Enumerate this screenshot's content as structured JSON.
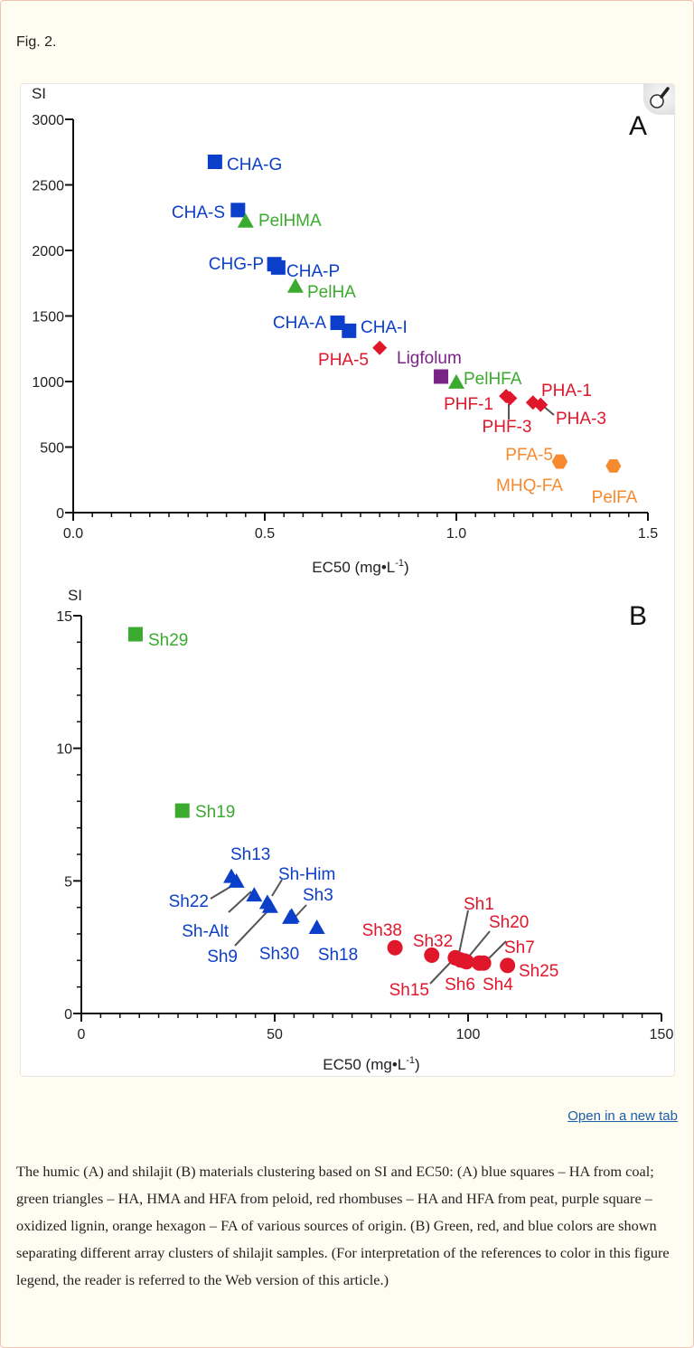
{
  "figure": {
    "title": "Fig. 2.",
    "open_link": "Open in a new tab",
    "caption": "The humic (A) and shilajit (B) materials clustering based on SI and EC50: (A) blue squares – HA from coal; green triangles – HA, HMA and HFA from peloid, red rhombuses – HA and HFA from peat, purple square – oxidized lignin, orange hexagon – FA of various sources of origin. (B) Green, red, and blue colors are shown separating different array clusters of shilajit samples. (For interpretation of the references to color in this figure legend, the reader is referred to the Web version of this article.)",
    "zoom_icon": "magnifier-icon"
  },
  "colors": {
    "blue": "#0b3fc9",
    "green": "#3aab2f",
    "red": "#e0162b",
    "purple": "#7a2387",
    "orange": "#f7892e"
  },
  "chart_data": [
    {
      "type": "scatter",
      "panel_label": "A",
      "xlabel": "EC50 (mg•L",
      "xlabel_sup": "-1",
      "xlabel_close": ")",
      "ylabel": "SI",
      "xlim": [
        0,
        1.5
      ],
      "ylim": [
        0,
        3000
      ],
      "xticks": [
        "0.0",
        "0.5",
        "1.0",
        "1.5"
      ],
      "xtick_values": [
        0,
        0.5,
        1.0,
        1.5
      ],
      "yticks": [
        "0",
        "500",
        "1000",
        "1500",
        "2000",
        "2500",
        "3000"
      ],
      "ytick_values": [
        0,
        500,
        1000,
        1500,
        2000,
        2500,
        3000
      ],
      "grid": false,
      "points": [
        {
          "label": "CHA-G",
          "x": 0.37,
          "y": 2676,
          "marker": "square",
          "color": "blue"
        },
        {
          "label": "CHA-S",
          "x": 0.43,
          "y": 2308,
          "marker": "square",
          "color": "blue"
        },
        {
          "label": "PelHMA",
          "x": 0.45,
          "y": 2222,
          "marker": "triangle",
          "color": "green"
        },
        {
          "label": "CHG-P",
          "x": 0.525,
          "y": 1895,
          "marker": "square",
          "color": "blue"
        },
        {
          "label": "CHA-P",
          "x": 0.535,
          "y": 1870,
          "marker": "square",
          "color": "blue"
        },
        {
          "label": "PelHA",
          "x": 0.58,
          "y": 1726,
          "marker": "triangle",
          "color": "green"
        },
        {
          "label": "CHA-A",
          "x": 0.69,
          "y": 1448,
          "marker": "square",
          "color": "blue"
        },
        {
          "label": "CHA-I",
          "x": 0.72,
          "y": 1387,
          "marker": "square",
          "color": "blue"
        },
        {
          "label": "PHA-5",
          "x": 0.8,
          "y": 1257,
          "marker": "diamond",
          "color": "red"
        },
        {
          "label": "Ligfolum",
          "x": 0.96,
          "y": 1038,
          "marker": "square",
          "color": "purple"
        },
        {
          "label": "PelHFA",
          "x": 1.0,
          "y": 994,
          "marker": "triangle",
          "color": "green"
        },
        {
          "label": "PHF-1",
          "x": 1.13,
          "y": 889,
          "marker": "diamond",
          "color": "red"
        },
        {
          "label": "PHF-3",
          "x": 1.14,
          "y": 872,
          "marker": "diamond",
          "color": "red"
        },
        {
          "label": "PHA-1",
          "x": 1.2,
          "y": 840,
          "marker": "diamond",
          "color": "red"
        },
        {
          "label": "PHA-3",
          "x": 1.22,
          "y": 822,
          "marker": "diamond",
          "color": "red"
        },
        {
          "label": "PFA-5",
          "x": 1.27,
          "y": 393,
          "marker": "hexagon",
          "color": "orange"
        },
        {
          "label": "MHQ-FA",
          "x": 1.27,
          "y": 385,
          "marker": "hexagon",
          "color": "orange"
        },
        {
          "label": "PelFA",
          "x": 1.41,
          "y": 356,
          "marker": "hexagon",
          "color": "orange"
        }
      ]
    },
    {
      "type": "scatter",
      "panel_label": "B",
      "xlabel": "EC50 (mg•L",
      "xlabel_sup": "-1",
      "xlabel_close": ")",
      "ylabel": "SI",
      "xlim": [
        0,
        150
      ],
      "ylim": [
        0,
        15
      ],
      "xticks": [
        "0",
        "50",
        "100",
        "150"
      ],
      "xtick_values": [
        0,
        50,
        100,
        150
      ],
      "yticks": [
        "0",
        "5",
        "10",
        "15"
      ],
      "ytick_values": [
        0,
        5,
        10,
        15
      ],
      "grid": false,
      "points": [
        {
          "label": "Sh29",
          "x": 14.0,
          "y": 14.3,
          "marker": "square",
          "color": "green"
        },
        {
          "label": "Sh19",
          "x": 26.1,
          "y": 7.65,
          "marker": "square",
          "color": "green"
        },
        {
          "label": "Sh13",
          "x": 38.8,
          "y": 5.16,
          "marker": "triangle",
          "color": "blue"
        },
        {
          "label": "Sh22",
          "x": 40.1,
          "y": 4.98,
          "marker": "triangle",
          "color": "blue"
        },
        {
          "label": "Sh-Alt",
          "x": 44.7,
          "y": 4.46,
          "marker": "triangle",
          "color": "blue"
        },
        {
          "label": "Sh-Him",
          "x": 48.1,
          "y": 4.18,
          "marker": "triangle",
          "color": "blue"
        },
        {
          "label": "Sh9",
          "x": 48.8,
          "y": 4.03,
          "marker": "triangle",
          "color": "blue"
        },
        {
          "label": "Sh30",
          "x": 54.0,
          "y": 3.62,
          "marker": "triangle",
          "color": "blue"
        },
        {
          "label": "Sh3",
          "x": 54.4,
          "y": 3.67,
          "marker": "triangle",
          "color": "blue"
        },
        {
          "label": "Sh18",
          "x": 60.9,
          "y": 3.24,
          "marker": "triangle",
          "color": "blue"
        },
        {
          "label": "Sh38",
          "x": 81.1,
          "y": 2.48,
          "marker": "circle",
          "color": "red"
        },
        {
          "label": "Sh32",
          "x": 90.6,
          "y": 2.2,
          "marker": "circle",
          "color": "red"
        },
        {
          "label": "Sh15",
          "x": 96.7,
          "y": 2.1,
          "marker": "circle",
          "color": "red"
        },
        {
          "label": "Sh1",
          "x": 98.0,
          "y": 2.02,
          "marker": "circle",
          "color": "red"
        },
        {
          "label": "Sh6",
          "x": 99.1,
          "y": 1.98,
          "marker": "circle",
          "color": "red"
        },
        {
          "label": "Sh20",
          "x": 99.6,
          "y": 1.95,
          "marker": "circle",
          "color": "red"
        },
        {
          "label": "Sh4",
          "x": 102.9,
          "y": 1.9,
          "marker": "circle",
          "color": "red"
        },
        {
          "label": "Sh7",
          "x": 104.0,
          "y": 1.9,
          "marker": "circle",
          "color": "red"
        },
        {
          "label": "Sh25",
          "x": 110.2,
          "y": 1.81,
          "marker": "circle",
          "color": "red"
        }
      ]
    }
  ]
}
